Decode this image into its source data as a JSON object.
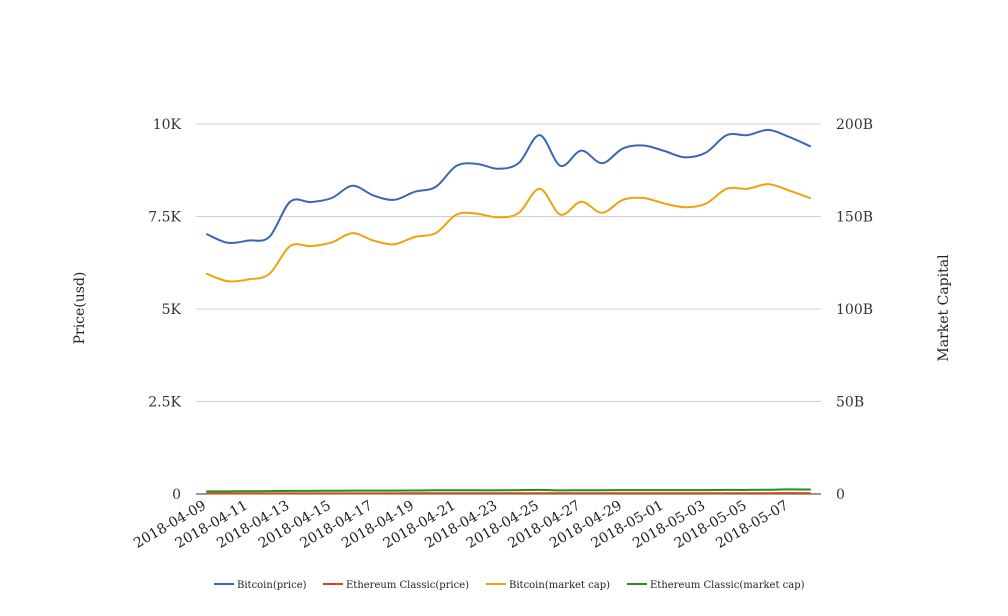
{
  "chart_data": {
    "type": "line",
    "title": "",
    "y_left_label": "Price(usd)",
    "y_right_label": "Market Capital",
    "y_left_ticks": [
      "0",
      "2.5K",
      "5K",
      "7.5K",
      "10K"
    ],
    "y_right_ticks": [
      "0",
      "50B",
      "100B",
      "150B",
      "200B"
    ],
    "ylim_left": [
      0,
      10000
    ],
    "ylim_right": [
      0,
      200000000000
    ],
    "grid": true,
    "legend_position": "bottom",
    "x_tick_labels": [
      "2018-04-09",
      "2018-04-11",
      "2018-04-13",
      "2018-04-15",
      "2018-04-17",
      "2018-04-19",
      "2018-04-21",
      "2018-04-23",
      "2018-04-25",
      "2018-04-27",
      "2018-04-29",
      "2018-05-01",
      "2018-05-03",
      "2018-05-05",
      "2018-05-07"
    ],
    "x": [
      "2018-04-09",
      "2018-04-10",
      "2018-04-11",
      "2018-04-12",
      "2018-04-13",
      "2018-04-14",
      "2018-04-15",
      "2018-04-16",
      "2018-04-17",
      "2018-04-18",
      "2018-04-19",
      "2018-04-20",
      "2018-04-21",
      "2018-04-22",
      "2018-04-23",
      "2018-04-24",
      "2018-04-25",
      "2018-04-26",
      "2018-04-27",
      "2018-04-28",
      "2018-04-29",
      "2018-04-30",
      "2018-05-01",
      "2018-05-02",
      "2018-05-03",
      "2018-05-04",
      "2018-05-05",
      "2018-05-06",
      "2018-05-07",
      "2018-05-08"
    ],
    "series": [
      {
        "name": "Bitcoin(price)",
        "axis": "left",
        "color": "#3b66b5",
        "values": [
          7020,
          6790,
          6850,
          6950,
          7900,
          7890,
          8000,
          8330,
          8070,
          7950,
          8170,
          8300,
          8870,
          8920,
          8790,
          8950,
          9700,
          8870,
          9280,
          8940,
          9340,
          9420,
          9270,
          9100,
          9230,
          9700,
          9700,
          9840,
          9650,
          9400
        ]
      },
      {
        "name": "Ethereum Classic(price)",
        "axis": "left",
        "color": "#cc4a1a",
        "values": [
          14,
          14,
          15,
          15,
          17,
          17,
          18,
          18,
          18,
          18,
          19,
          20,
          20,
          20,
          20,
          21,
          21,
          19,
          20,
          20,
          21,
          21,
          21,
          20,
          20,
          21,
          21,
          22,
          23,
          22
        ]
      },
      {
        "name": "Bitcoin(market cap)",
        "axis": "right",
        "color": "#f0a20e",
        "values": [
          119000000000,
          115000000000,
          116000000000,
          119000000000,
          134000000000,
          134000000000,
          136000000000,
          141000000000,
          137000000000,
          135000000000,
          139000000000,
          141000000000,
          151000000000,
          151500000000,
          149500000000,
          152000000000,
          165000000000,
          151000000000,
          158000000000,
          152000000000,
          159000000000,
          160000000000,
          157000000000,
          155000000000,
          157000000000,
          165000000000,
          165000000000,
          167500000000,
          164000000000,
          160000000000
        ]
      },
      {
        "name": "Ethereum Classic(market cap)",
        "axis": "right",
        "color": "#2a8a1e",
        "values": [
          1400000000,
          1450000000,
          1500000000,
          1550000000,
          1700000000,
          1700000000,
          1750000000,
          1800000000,
          1800000000,
          1800000000,
          1900000000,
          2000000000,
          2050000000,
          2000000000,
          2000000000,
          2100000000,
          2200000000,
          1950000000,
          2050000000,
          2050000000,
          2100000000,
          2100000000,
          2100000000,
          2100000000,
          2100000000,
          2200000000,
          2200000000,
          2300000000,
          2500000000,
          2400000000
        ]
      }
    ]
  }
}
